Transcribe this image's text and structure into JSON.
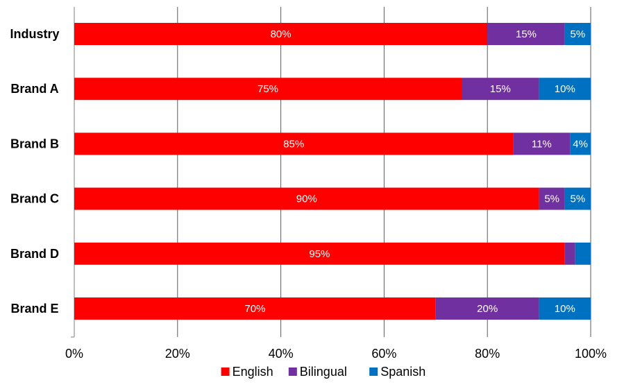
{
  "chart_data": {
    "type": "bar",
    "orientation": "horizontal",
    "stacked": true,
    "categories": [
      "Industry",
      "Brand A",
      "Brand B",
      "Brand C",
      "Brand D",
      "Brand E"
    ],
    "series": [
      {
        "name": "English",
        "color": "#ff0000",
        "values": [
          80,
          75,
          85,
          90,
          95,
          70
        ],
        "labels": [
          "80%",
          "75%",
          "85%",
          "90%",
          "95%",
          "70%"
        ]
      },
      {
        "name": "Bilingual",
        "color": "#7030a0",
        "values": [
          15,
          15,
          11,
          5,
          2,
          20
        ],
        "labels": [
          "15%",
          "15%",
          "11%",
          "5%",
          "",
          "20%"
        ]
      },
      {
        "name": "Spanish",
        "color": "#0070c0",
        "values": [
          5,
          10,
          4,
          5,
          3,
          10
        ],
        "labels": [
          "5%",
          "10%",
          "4%",
          "5%",
          "",
          "10%"
        ]
      }
    ],
    "xlim": [
      0,
      100
    ],
    "x_ticks": [
      0,
      20,
      40,
      60,
      80,
      100
    ],
    "x_tick_labels": [
      "0%",
      "20%",
      "40%",
      "60%",
      "80%",
      "100%"
    ],
    "grid": "vertical",
    "legend": "bottom"
  }
}
